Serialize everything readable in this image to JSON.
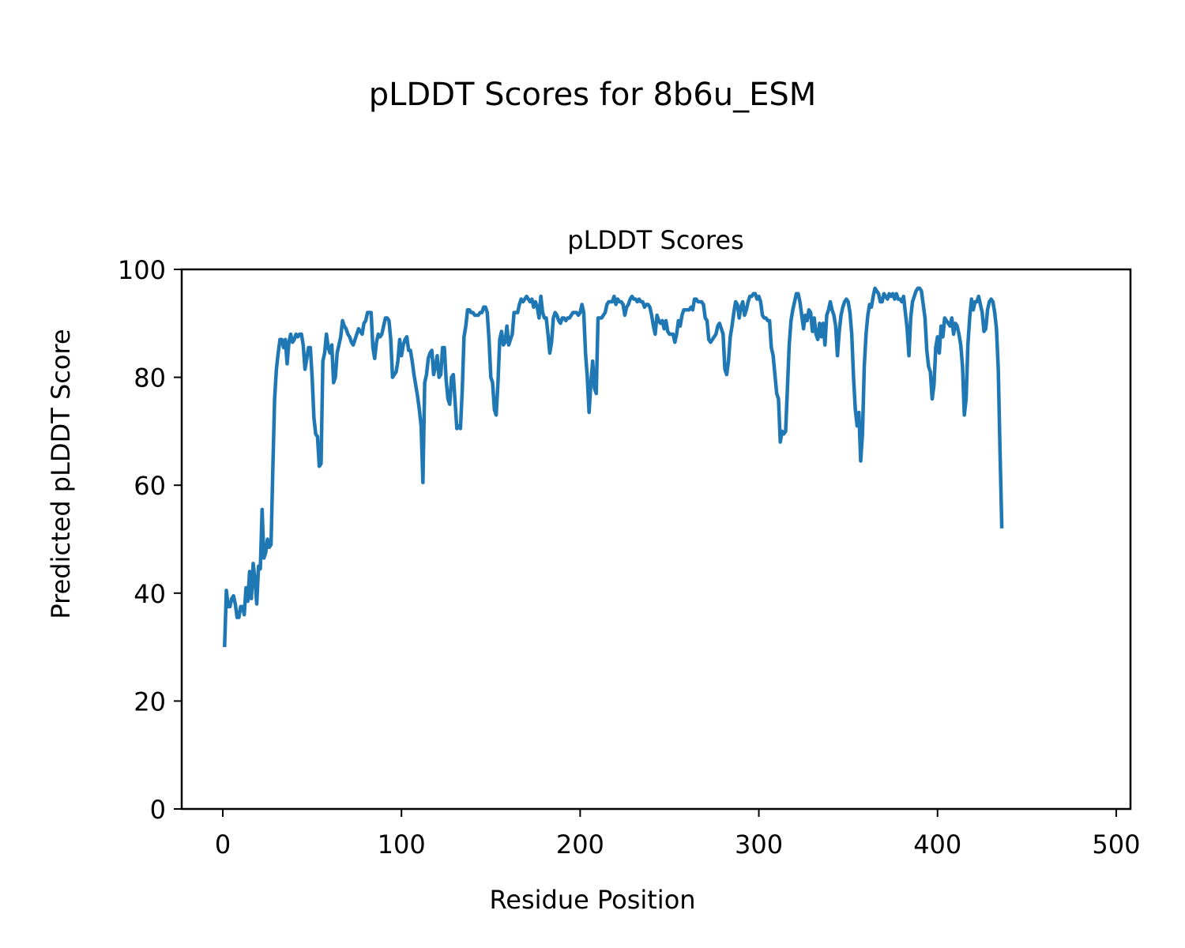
{
  "figure": {
    "suptitle": "pLDDT Scores for 8b6u_ESM"
  },
  "chart_data": {
    "type": "line",
    "title": "pLDDT Scores",
    "xlabel": "Residue Position",
    "ylabel": "Predicted pLDDT Score",
    "xlim": [
      -23,
      508
    ],
    "ylim": [
      0,
      100
    ],
    "xticks": [
      0,
      100,
      200,
      300,
      400,
      500
    ],
    "yticks": [
      0,
      20,
      40,
      60,
      80,
      100
    ],
    "grid": false,
    "legend": "none",
    "line_color": "#1f77b4",
    "series": [
      {
        "x_start": 1,
        "x_step": 1,
        "values": [
          30,
          40.5,
          37.5,
          37.5,
          39,
          39.5,
          38,
          35.5,
          35.5,
          37.5,
          37.5,
          36,
          41,
          38.5,
          44,
          39,
          45.5,
          42.5,
          38,
          45,
          44.5,
          55.5,
          46.5,
          47.5,
          50,
          48.5,
          49,
          63,
          76,
          81.5,
          84.5,
          87,
          87,
          85.5,
          87,
          82.5,
          86.5,
          88,
          86.5,
          87,
          88,
          87.5,
          88,
          88,
          86,
          81.5,
          83.5,
          85.5,
          85.5,
          80,
          72.5,
          69.5,
          69,
          63.5,
          64,
          83,
          84.5,
          88,
          85.5,
          84.5,
          86,
          79,
          80,
          84.5,
          86,
          87.5,
          90.5,
          89.5,
          89,
          88,
          87.5,
          86.5,
          86,
          87,
          88,
          89,
          88.5,
          88,
          90,
          90.5,
          92,
          92,
          92,
          85.5,
          83.5,
          86.5,
          88,
          87.5,
          88,
          89.5,
          91,
          91,
          90.5,
          87,
          80,
          80.5,
          81,
          83,
          87,
          84,
          86,
          87,
          87.5,
          85,
          85,
          83,
          80.5,
          78.5,
          76.5,
          74,
          71,
          60.5,
          79,
          80.5,
          83.5,
          84.5,
          85,
          80.5,
          82,
          84,
          80,
          80.5,
          85.5,
          85.5,
          79.5,
          76,
          75,
          80,
          80.5,
          75.5,
          70.5,
          71,
          70.5,
          77.5,
          87.5,
          89.5,
          92.5,
          92.5,
          92,
          92,
          91.5,
          91.5,
          91.5,
          92,
          92,
          93,
          93,
          92,
          87,
          80,
          79,
          74,
          73,
          79,
          87,
          88.5,
          86,
          86.5,
          89.5,
          86,
          87,
          88,
          92,
          92,
          92,
          93.5,
          94.5,
          94,
          94.5,
          95,
          94.5,
          94,
          94.5,
          93,
          94,
          93,
          91,
          95,
          92,
          91,
          91,
          88,
          84.5,
          86.5,
          91,
          92,
          91.5,
          90.5,
          90,
          91,
          91,
          90.5,
          91,
          91,
          91.5,
          92,
          92,
          92,
          91.5,
          92,
          93.5,
          92,
          84.5,
          80,
          73.5,
          79,
          83,
          78,
          77,
          91,
          91,
          91,
          91.5,
          92,
          93.5,
          94,
          94,
          94,
          95,
          93.5,
          94.5,
          94,
          94,
          93.5,
          91.5,
          93,
          93.5,
          94.5,
          95,
          94.5,
          94.5,
          94,
          94.5,
          94,
          94,
          93,
          93.5,
          93.5,
          93,
          91.5,
          89.5,
          88,
          91.5,
          90.5,
          90,
          90.5,
          89,
          90.5,
          88.5,
          88,
          88,
          88,
          86.5,
          88,
          90.5,
          89.5,
          91.5,
          92.5,
          92.5,
          92.5,
          92.5,
          93,
          92.5,
          94.5,
          94.5,
          94,
          94,
          94,
          93.5,
          91,
          90.5,
          87,
          86.5,
          87,
          87.5,
          88,
          89.5,
          90,
          89,
          88,
          81.5,
          80.5,
          83,
          87.5,
          89.5,
          92,
          94,
          93.5,
          91,
          93,
          94,
          91.5,
          92.5,
          94,
          95,
          95,
          95.5,
          95.5,
          94.5,
          95,
          94,
          91.5,
          91,
          91,
          90.5,
          90.5,
          85.5,
          84,
          80.5,
          77,
          76,
          68,
          70,
          69.5,
          70,
          78,
          86,
          90.5,
          92.5,
          94,
          95.5,
          95.5,
          94,
          91.5,
          89,
          91.5,
          90.5,
          92.5,
          92,
          88.5,
          91,
          88,
          87,
          90,
          87.5,
          90,
          86,
          91.5,
          92.5,
          94,
          92.5,
          91.5,
          89.5,
          84,
          88.5,
          91.5,
          93,
          94,
          94.5,
          94,
          92,
          88,
          80,
          74,
          71,
          73.5,
          64.5,
          69.5,
          82,
          88,
          91.5,
          93.5,
          93,
          95,
          96.5,
          96,
          95.5,
          94,
          94,
          95.5,
          95,
          94.5,
          95.5,
          95,
          95.5,
          94.5,
          95.5,
          94.5,
          94.5,
          94,
          95,
          92,
          89,
          84,
          91,
          94,
          95,
          96,
          96.5,
          96.5,
          96,
          93.5,
          91,
          85,
          82,
          81,
          76,
          78.5,
          85.5,
          87.5,
          84.5,
          89.5,
          87.5,
          91,
          90.5,
          90,
          89.5,
          91,
          88,
          90,
          89.5,
          88,
          86,
          82,
          73,
          76,
          86,
          91,
          94.5,
          92.5,
          94,
          94,
          95,
          93.5,
          92,
          88.5,
          89,
          92.5,
          94,
          94.5,
          94,
          92,
          89,
          81.5,
          66,
          52
        ]
      }
    ]
  }
}
